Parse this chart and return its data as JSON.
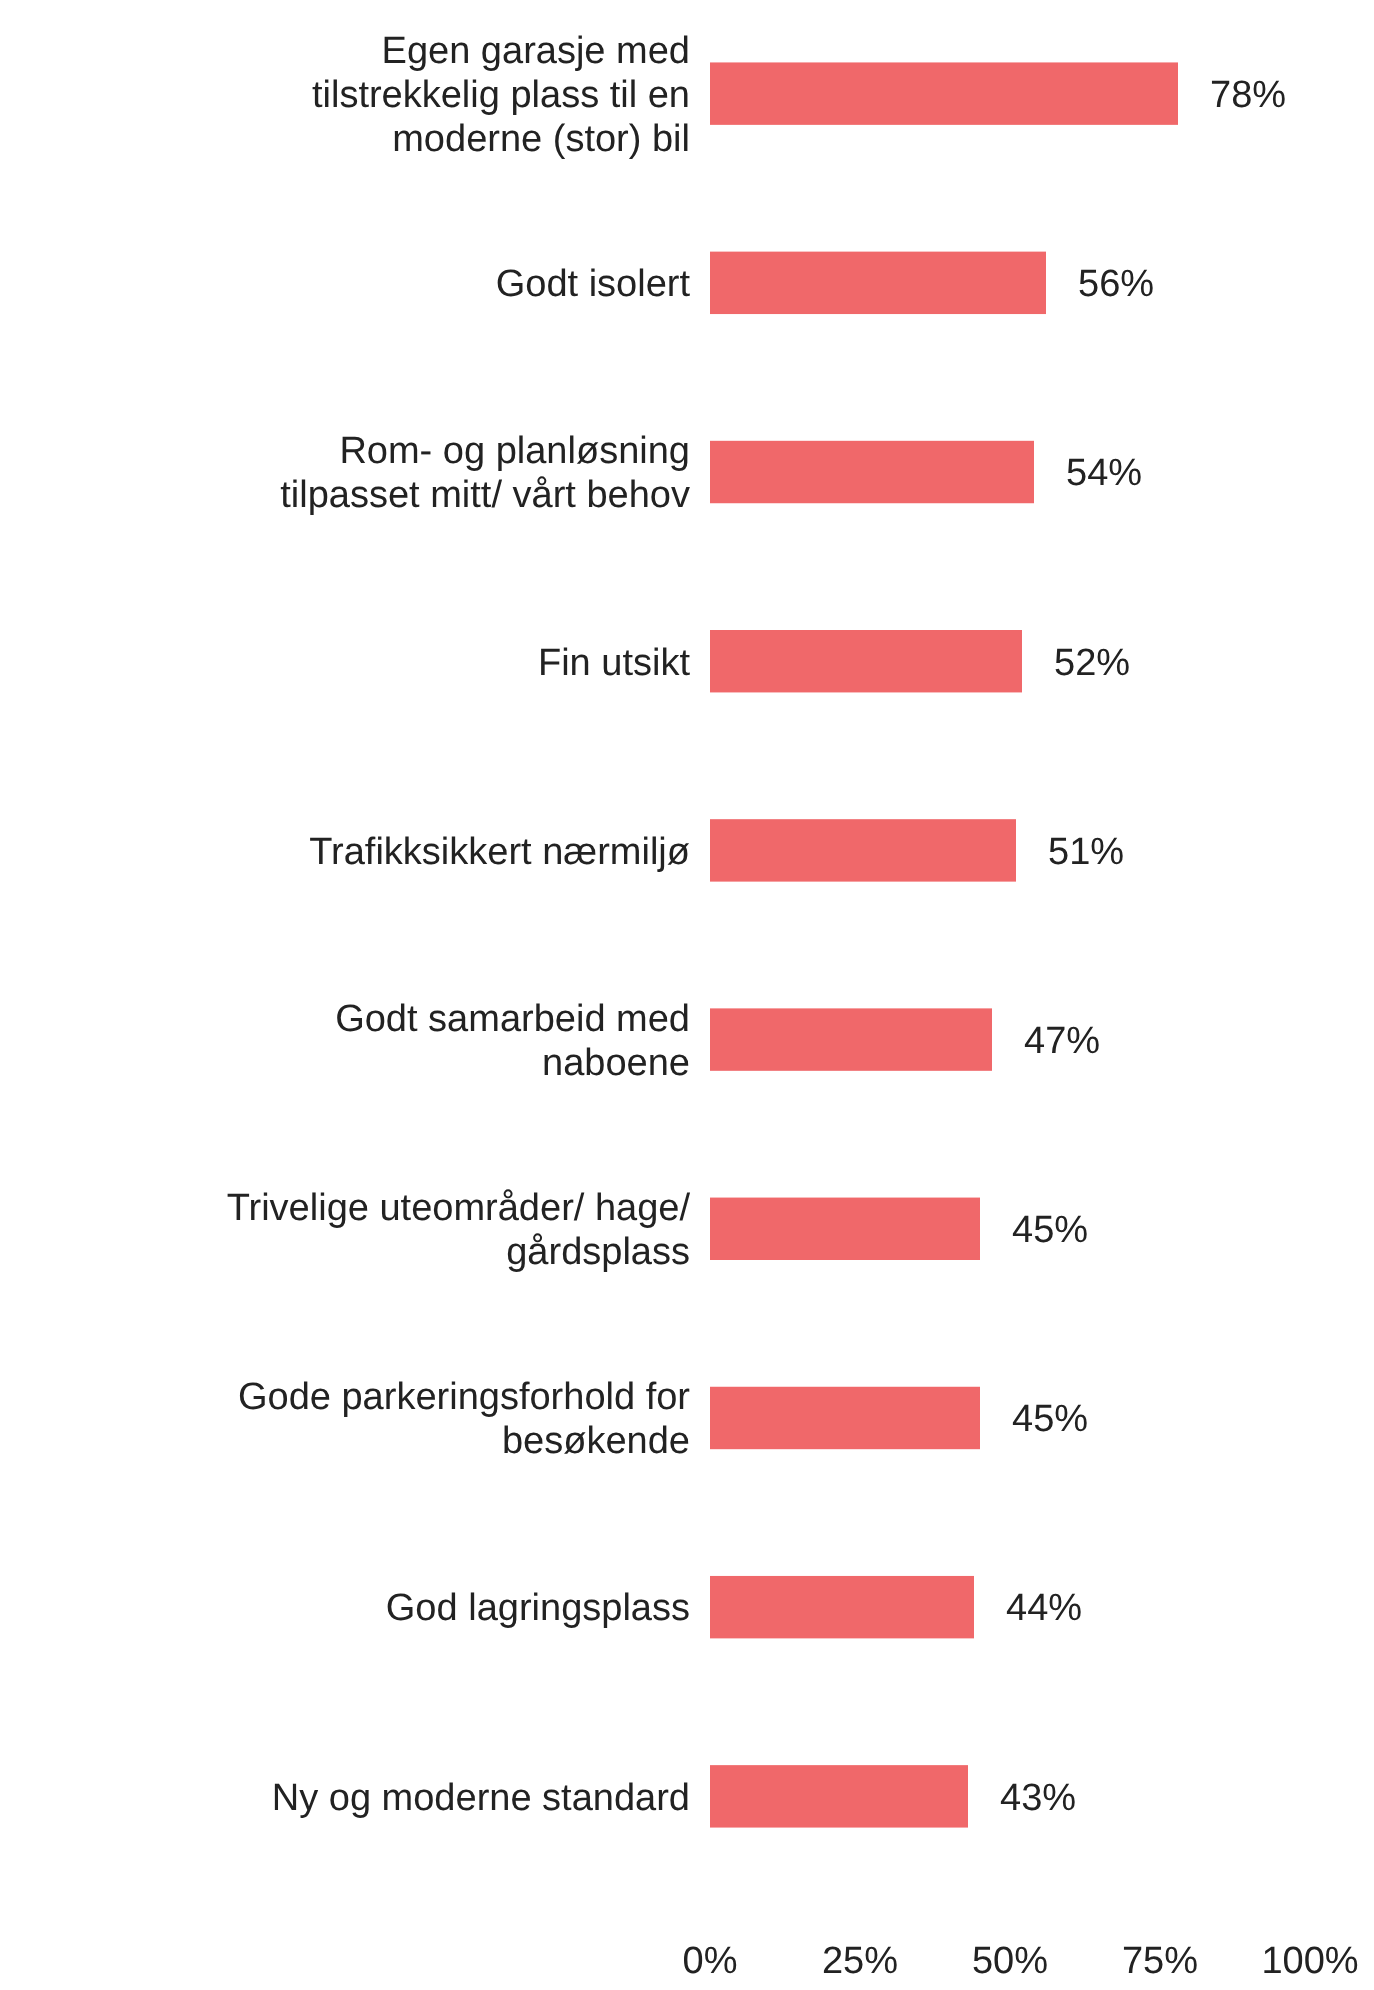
{
  "chart_data": {
    "type": "bar",
    "orientation": "horizontal",
    "categories": [
      "Egen garasje med tilstrekkelig plass til en moderne (stor) bil",
      "Godt isolert",
      "Rom- og planløsning tilpasset mitt/ vårt behov",
      "Fin utsikt",
      "Trafikksikkert nærmiljø",
      "Godt samarbeid med naboene",
      "Trivelige uteområder/ hage/ gårdsplass",
      "Gode parkeringsforhold for besøkende",
      "God lagringsplass",
      "Ny og moderne standard"
    ],
    "values": [
      78,
      56,
      54,
      52,
      51,
      47,
      45,
      45,
      44,
      43
    ],
    "value_labels": [
      "78%",
      "56%",
      "54%",
      "52%",
      "51%",
      "47%",
      "45%",
      "45%",
      "44%",
      "43%"
    ],
    "color": "#f0686a",
    "xlim": [
      0,
      100
    ],
    "xticks": [
      {
        "value": 0,
        "label": "0%"
      },
      {
        "value": 25,
        "label": "25%"
      },
      {
        "value": 50,
        "label": "50%"
      },
      {
        "value": 75,
        "label": "75%"
      },
      {
        "value": 100,
        "label": "100%"
      }
    ],
    "grid": false
  }
}
